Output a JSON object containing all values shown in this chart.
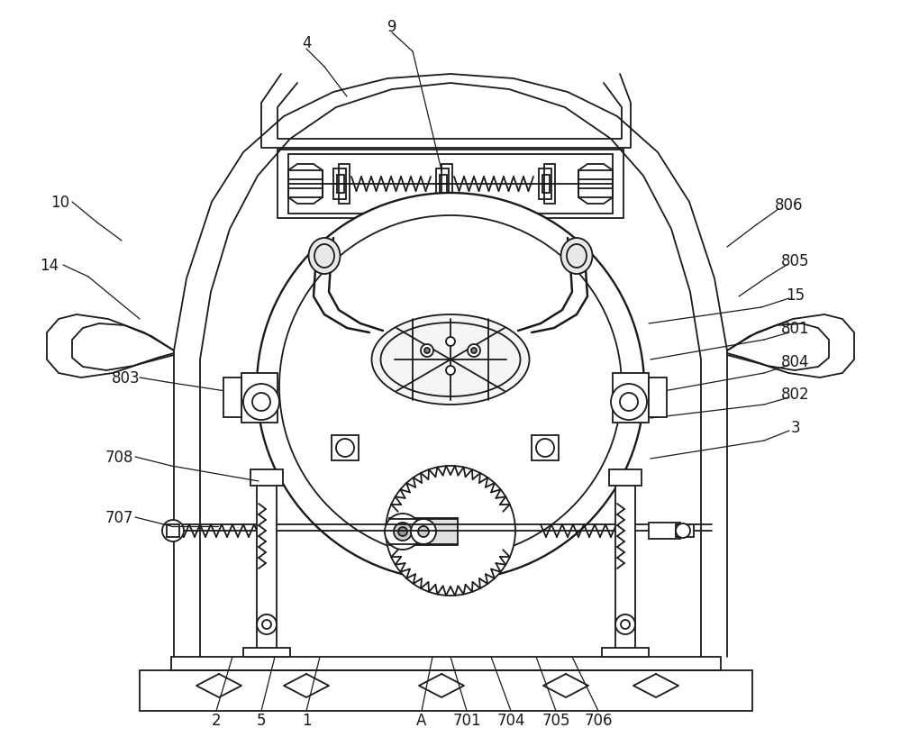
{
  "bg_color": "#ffffff",
  "line_color": "#1a1a1a",
  "label_color": "#1a1a1a",
  "lw": 1.3,
  "figsize": [
    10.0,
    8.29
  ],
  "dpi": 100
}
